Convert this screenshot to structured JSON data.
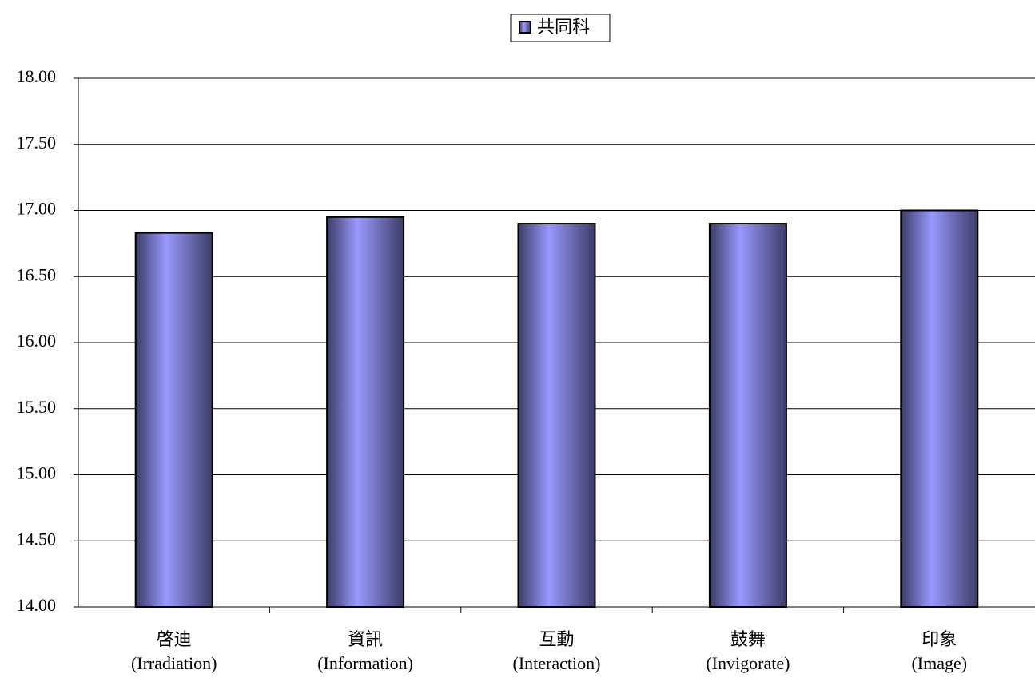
{
  "chart_data": {
    "type": "bar",
    "categories": [
      "啓迪\n(Irradiation)",
      "資訊\n(Information)",
      "互動\n(Interaction)",
      "鼓舞\n(Invigorate)",
      "印象\n(Image)"
    ],
    "series": [
      {
        "name": "共同科",
        "color": "#9999ff",
        "values": [
          16.83,
          16.95,
          16.9,
          16.9,
          17.0
        ]
      }
    ],
    "ylim": [
      14,
      18
    ],
    "yticks": [
      {
        "value": 14,
        "label": "14.00"
      },
      {
        "value": 14.5,
        "label": "14.50"
      },
      {
        "value": 15,
        "label": "15.00"
      },
      {
        "value": 15.5,
        "label": "15.50"
      },
      {
        "value": 16,
        "label": "16.00"
      },
      {
        "value": 16.5,
        "label": "16.50"
      },
      {
        "value": 17,
        "label": "17.00"
      },
      {
        "value": 17.5,
        "label": "17.50"
      },
      {
        "value": 18,
        "label": "18.00"
      }
    ],
    "grid": true,
    "legend": "top"
  }
}
